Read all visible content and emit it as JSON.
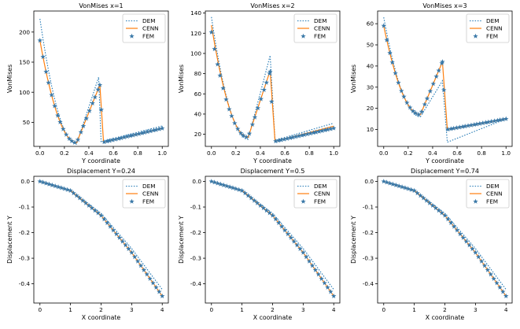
{
  "chart_data": [
    {
      "type": "line",
      "title": "VonMises x=1",
      "xlabel": "Y coordinate",
      "ylabel": "VonMises",
      "xlim": [
        -0.05,
        1.05
      ],
      "ylim": [
        10,
        235
      ],
      "xticks": [
        "0.0",
        "0.2",
        "0.4",
        "0.6",
        "0.8",
        "1.0"
      ],
      "yticks": [
        "50",
        "100",
        "150",
        "200"
      ],
      "legend": [
        "DEM",
        "CENN",
        "FEM"
      ],
      "legend_position": "top-right",
      "series": [
        {
          "name": "DEM",
          "x": [
            0,
            0.3,
            0.48,
            0.5,
            1.0
          ],
          "y": [
            222,
            14,
            125,
            18,
            44
          ]
        },
        {
          "name": "CENN",
          "x": [
            0,
            0.3,
            0.49,
            0.52,
            1.0
          ],
          "y": [
            186,
            16,
            112,
            17,
            40
          ]
        },
        {
          "name": "FEM",
          "x": [
            0,
            0.3,
            0.49,
            0.52,
            1.0
          ],
          "y": [
            186,
            16,
            112,
            17,
            40
          ]
        }
      ]
    },
    {
      "type": "line",
      "title": "VonMises x=2",
      "xlabel": "Y coordinate",
      "ylabel": "VonMises",
      "xlim": [
        -0.05,
        1.05
      ],
      "ylim": [
        8,
        142
      ],
      "xticks": [
        "0.0",
        "0.2",
        "0.4",
        "0.6",
        "0.8",
        "1.0"
      ],
      "yticks": [
        "20",
        "40",
        "60",
        "80",
        "100",
        "120",
        "140"
      ],
      "legend": [
        "DEM",
        "CENN",
        "FEM"
      ],
      "legend_position": "top-right",
      "series": [
        {
          "name": "DEM",
          "x": [
            0,
            0.3,
            0.48,
            0.52,
            1.0
          ],
          "y": [
            136,
            15,
            98,
            14,
            31
          ]
        },
        {
          "name": "CENN",
          "x": [
            0,
            0.3,
            0.48,
            0.52,
            1.0
          ],
          "y": [
            128,
            17,
            83,
            13,
            28
          ]
        },
        {
          "name": "FEM",
          "x": [
            0,
            0.3,
            0.48,
            0.52,
            1.0
          ],
          "y": [
            121,
            17,
            82,
            13,
            26
          ]
        }
      ]
    },
    {
      "type": "line",
      "title": "VonMises x=3",
      "xlabel": "Y coordinate",
      "ylabel": "VonMises",
      "xlim": [
        -0.05,
        1.05
      ],
      "ylim": [
        2,
        66
      ],
      "xticks": [
        "0.0",
        "0.2",
        "0.4",
        "0.6",
        "0.8",
        "1.0"
      ],
      "yticks": [
        "10",
        "20",
        "30",
        "40",
        "50",
        "60"
      ],
      "legend": [
        "DEM",
        "CENN",
        "FEM"
      ],
      "legend_position": "top-right",
      "series": [
        {
          "name": "DEM",
          "x": [
            0,
            0.3,
            0.48,
            0.52,
            1.0
          ],
          "y": [
            63,
            16,
            33,
            4,
            15
          ]
        },
        {
          "name": "CENN",
          "x": [
            0,
            0.3,
            0.48,
            0.52,
            1.0
          ],
          "y": [
            59,
            17,
            42,
            10,
            15
          ]
        },
        {
          "name": "FEM",
          "x": [
            0,
            0.3,
            0.48,
            0.52,
            1.0
          ],
          "y": [
            59,
            17,
            42,
            10,
            15
          ]
        }
      ]
    },
    {
      "type": "line",
      "title": "Displacement Y=0.24",
      "xlabel": "X coordinate",
      "ylabel": "Displacement Y",
      "xlim": [
        -0.2,
        4.2
      ],
      "ylim": [
        -0.475,
        0.02
      ],
      "xticks": [
        "0",
        "1",
        "2",
        "3",
        "4"
      ],
      "yticks": [
        "0.0",
        "-0.1",
        "-0.2",
        "-0.3",
        "-0.4"
      ],
      "legend": [
        "DEM",
        "CENN",
        "FEM"
      ],
      "legend_position": "top-right",
      "series": [
        {
          "name": "DEM",
          "x": [
            0,
            1,
            2,
            3,
            4
          ],
          "y": [
            0,
            -0.034,
            -0.125,
            -0.262,
            -0.422
          ]
        },
        {
          "name": "CENN",
          "x": [
            0,
            1,
            2,
            3,
            4
          ],
          "y": [
            0,
            -0.036,
            -0.133,
            -0.278,
            -0.448
          ]
        },
        {
          "name": "FEM",
          "x": [
            0,
            1,
            2,
            3,
            4
          ],
          "y": [
            0,
            -0.036,
            -0.133,
            -0.278,
            -0.448
          ]
        }
      ]
    },
    {
      "type": "line",
      "title": "Displacement Y=0.5",
      "xlabel": "X coordinate",
      "ylabel": "Displacement Y",
      "xlim": [
        -0.2,
        4.2
      ],
      "ylim": [
        -0.475,
        0.02
      ],
      "xticks": [
        "0",
        "1",
        "2",
        "3",
        "4"
      ],
      "yticks": [
        "0.0",
        "-0.1",
        "-0.2",
        "-0.3",
        "-0.4"
      ],
      "legend": [
        "DEM",
        "CENN",
        "FEM"
      ],
      "legend_position": "top-right",
      "series": [
        {
          "name": "DEM",
          "x": [
            0,
            1,
            2,
            3,
            4
          ],
          "y": [
            0,
            -0.034,
            -0.125,
            -0.262,
            -0.422
          ]
        },
        {
          "name": "CENN",
          "x": [
            0,
            1,
            2,
            3,
            4
          ],
          "y": [
            0,
            -0.036,
            -0.133,
            -0.278,
            -0.448
          ]
        },
        {
          "name": "FEM",
          "x": [
            0,
            1,
            2,
            3,
            4
          ],
          "y": [
            0,
            -0.036,
            -0.133,
            -0.278,
            -0.448
          ]
        }
      ]
    },
    {
      "type": "line",
      "title": "Displacement Y=0.74",
      "xlabel": "X coordinate",
      "ylabel": "Displacement Y",
      "xlim": [
        -0.2,
        4.2
      ],
      "ylim": [
        -0.475,
        0.02
      ],
      "xticks": [
        "0",
        "1",
        "2",
        "3",
        "4"
      ],
      "yticks": [
        "0.0",
        "-0.1",
        "-0.2",
        "-0.3",
        "-0.4"
      ],
      "legend": [
        "DEM",
        "CENN",
        "FEM"
      ],
      "legend_position": "top-right",
      "series": [
        {
          "name": "DEM",
          "x": [
            0,
            1,
            2,
            3,
            4
          ],
          "y": [
            0,
            -0.034,
            -0.125,
            -0.262,
            -0.422
          ]
        },
        {
          "name": "CENN",
          "x": [
            0,
            1,
            2,
            3,
            4
          ],
          "y": [
            0,
            -0.036,
            -0.133,
            -0.278,
            -0.448
          ]
        },
        {
          "name": "FEM",
          "x": [
            0,
            1,
            2,
            3,
            4
          ],
          "y": [
            0,
            -0.036,
            -0.133,
            -0.278,
            -0.448
          ]
        }
      ]
    }
  ],
  "colors": {
    "dem": "#1f77b4",
    "cenn": "#ff7f0e",
    "fem": "#3b79a8",
    "axis": "#000000",
    "legend_border": "#cccccc"
  }
}
